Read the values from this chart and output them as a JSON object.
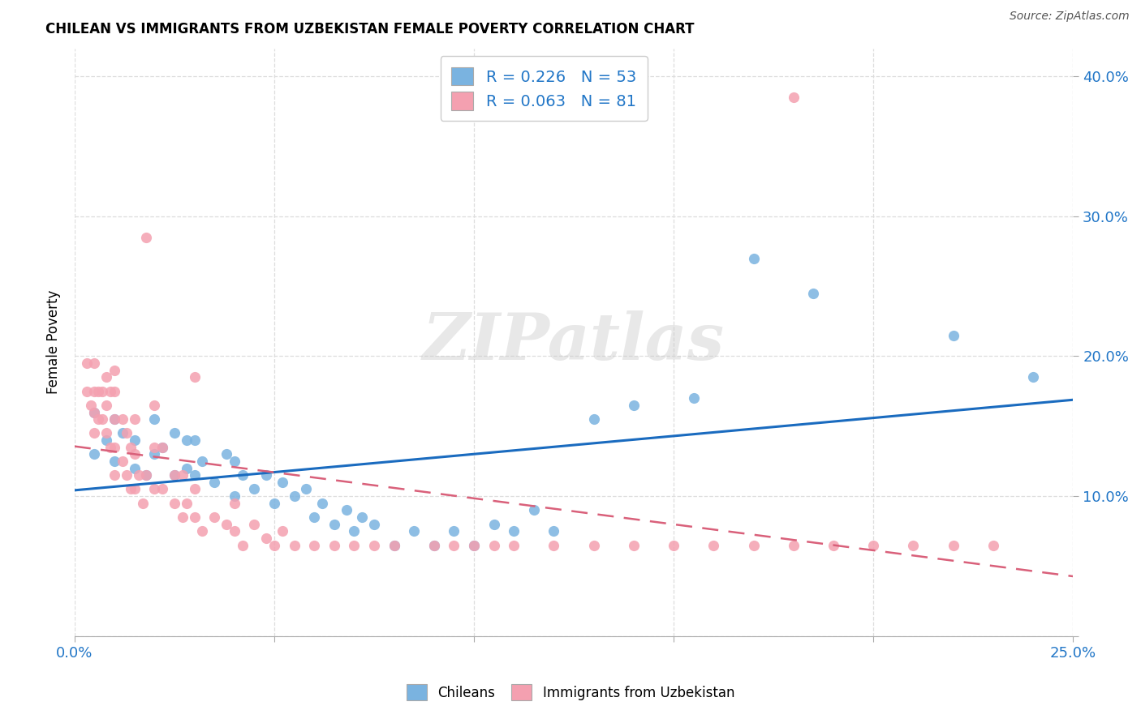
{
  "title": "CHILEAN VS IMMIGRANTS FROM UZBEKISTAN FEMALE POVERTY CORRELATION CHART",
  "source": "Source: ZipAtlas.com",
  "ylabel": "Female Poverty",
  "xlim": [
    0.0,
    0.25
  ],
  "ylim": [
    0.0,
    0.42
  ],
  "blue_color": "#7ab3e0",
  "pink_color": "#f4a0b0",
  "blue_line_color": "#1a6bbf",
  "pink_line_color": "#d9607a",
  "watermark": "ZIPatlas",
  "legend_R_blue": "0.226",
  "legend_N_blue": "53",
  "legend_R_pink": "0.063",
  "legend_N_pink": "81",
  "blue_scatter_x": [
    0.005,
    0.005,
    0.008,
    0.01,
    0.01,
    0.012,
    0.015,
    0.015,
    0.018,
    0.02,
    0.02,
    0.022,
    0.025,
    0.025,
    0.028,
    0.028,
    0.03,
    0.03,
    0.032,
    0.035,
    0.038,
    0.04,
    0.04,
    0.042,
    0.045,
    0.048,
    0.05,
    0.052,
    0.055,
    0.058,
    0.06,
    0.062,
    0.065,
    0.068,
    0.07,
    0.072,
    0.075,
    0.08,
    0.085,
    0.09,
    0.095,
    0.1,
    0.105,
    0.11,
    0.115,
    0.12,
    0.13,
    0.14,
    0.155,
    0.17,
    0.185,
    0.22,
    0.24
  ],
  "blue_scatter_y": [
    0.13,
    0.16,
    0.14,
    0.125,
    0.155,
    0.145,
    0.12,
    0.14,
    0.115,
    0.13,
    0.155,
    0.135,
    0.115,
    0.145,
    0.12,
    0.14,
    0.115,
    0.14,
    0.125,
    0.11,
    0.13,
    0.1,
    0.125,
    0.115,
    0.105,
    0.115,
    0.095,
    0.11,
    0.1,
    0.105,
    0.085,
    0.095,
    0.08,
    0.09,
    0.075,
    0.085,
    0.08,
    0.065,
    0.075,
    0.065,
    0.075,
    0.065,
    0.08,
    0.075,
    0.09,
    0.075,
    0.155,
    0.165,
    0.17,
    0.27,
    0.245,
    0.215,
    0.185
  ],
  "pink_scatter_x": [
    0.003,
    0.003,
    0.004,
    0.005,
    0.005,
    0.005,
    0.005,
    0.006,
    0.006,
    0.007,
    0.007,
    0.008,
    0.008,
    0.008,
    0.009,
    0.009,
    0.01,
    0.01,
    0.01,
    0.01,
    0.01,
    0.012,
    0.012,
    0.013,
    0.013,
    0.014,
    0.014,
    0.015,
    0.015,
    0.015,
    0.016,
    0.017,
    0.018,
    0.018,
    0.02,
    0.02,
    0.02,
    0.022,
    0.022,
    0.025,
    0.025,
    0.027,
    0.027,
    0.028,
    0.03,
    0.03,
    0.03,
    0.032,
    0.035,
    0.038,
    0.04,
    0.04,
    0.042,
    0.045,
    0.048,
    0.05,
    0.052,
    0.055,
    0.06,
    0.065,
    0.07,
    0.075,
    0.08,
    0.09,
    0.095,
    0.1,
    0.105,
    0.11,
    0.12,
    0.13,
    0.14,
    0.15,
    0.16,
    0.17,
    0.18,
    0.19,
    0.2,
    0.21,
    0.22,
    0.23,
    0.18
  ],
  "pink_scatter_y": [
    0.175,
    0.195,
    0.165,
    0.145,
    0.16,
    0.175,
    0.195,
    0.155,
    0.175,
    0.155,
    0.175,
    0.145,
    0.165,
    0.185,
    0.135,
    0.175,
    0.115,
    0.135,
    0.155,
    0.175,
    0.19,
    0.125,
    0.155,
    0.115,
    0.145,
    0.105,
    0.135,
    0.105,
    0.13,
    0.155,
    0.115,
    0.095,
    0.115,
    0.285,
    0.105,
    0.135,
    0.165,
    0.105,
    0.135,
    0.095,
    0.115,
    0.085,
    0.115,
    0.095,
    0.085,
    0.105,
    0.185,
    0.075,
    0.085,
    0.08,
    0.075,
    0.095,
    0.065,
    0.08,
    0.07,
    0.065,
    0.075,
    0.065,
    0.065,
    0.065,
    0.065,
    0.065,
    0.065,
    0.065,
    0.065,
    0.065,
    0.065,
    0.065,
    0.065,
    0.065,
    0.065,
    0.065,
    0.065,
    0.065,
    0.065,
    0.065,
    0.065,
    0.065,
    0.065,
    0.065,
    0.385
  ],
  "background_color": "#ffffff",
  "grid_color": "#dddddd"
}
